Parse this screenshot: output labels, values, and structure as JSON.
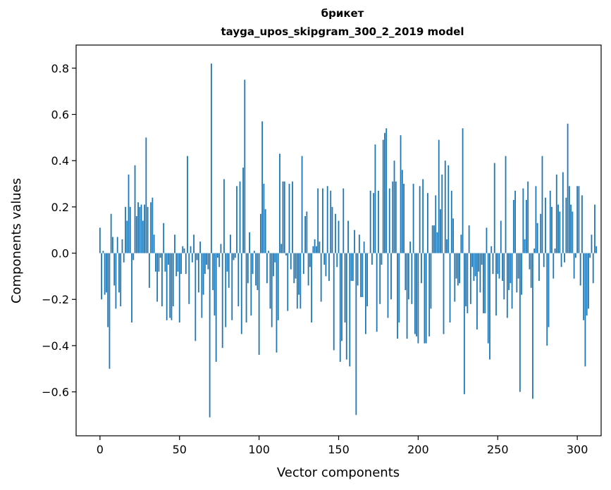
{
  "chart_data": {
    "type": "bar",
    "title": "брикет",
    "subtitle": "tayga_upos_skipgram_300_2_2019 model",
    "xlabel": "Vector components",
    "ylabel": "Components values",
    "xlim": [
      -15,
      315
    ],
    "ylim": [
      -0.79,
      0.9
    ],
    "xticks": [
      0,
      50,
      100,
      150,
      200,
      250,
      300
    ],
    "xtick_labels": [
      "0",
      "50",
      "100",
      "150",
      "200",
      "250",
      "300"
    ],
    "yticks": [
      -0.6,
      -0.4,
      -0.2,
      0.0,
      0.2,
      0.4,
      0.6,
      0.8
    ],
    "ytick_labels": [
      "−0.6",
      "−0.4",
      "−0.2",
      "0.0",
      "0.2",
      "0.4",
      "0.6",
      "0.8"
    ],
    "bar_color": "#1f77b4",
    "values": [
      0.11,
      -0.2,
      0.01,
      -0.18,
      -0.17,
      -0.32,
      -0.5,
      0.17,
      0.07,
      -0.14,
      -0.24,
      0.07,
      -0.17,
      -0.23,
      0.06,
      -0.04,
      0.2,
      0.14,
      0.34,
      0.2,
      -0.3,
      -0.03,
      0.38,
      0.16,
      0.22,
      0.2,
      0.21,
      0.14,
      0.21,
      0.5,
      0.2,
      -0.15,
      0.22,
      0.24,
      0.08,
      -0.08,
      -0.21,
      -0.08,
      -0.02,
      -0.23,
      0.13,
      -0.08,
      -0.29,
      -0.05,
      -0.28,
      -0.29,
      -0.23,
      0.08,
      -0.1,
      -0.08,
      -0.3,
      -0.09,
      0.03,
      0.02,
      -0.09,
      0.42,
      -0.22,
      0.03,
      -0.04,
      0.08,
      -0.38,
      -0.03,
      -0.17,
      0.05,
      -0.28,
      -0.18,
      -0.09,
      -0.05,
      -0.07,
      -0.71,
      0.82,
      -0.16,
      -0.27,
      -0.47,
      -0.02,
      -0.06,
      0.04,
      -0.41,
      0.32,
      -0.32,
      -0.08,
      -0.15,
      0.08,
      -0.29,
      -0.03,
      -0.02,
      0.29,
      -0.23,
      0.31,
      -0.35,
      0.37,
      0.75,
      -0.3,
      -0.13,
      0.09,
      -0.27,
      -0.09,
      0.01,
      -0.14,
      -0.16,
      -0.44,
      0.17,
      0.57,
      0.3,
      0.19,
      -0.13,
      0.01,
      -0.24,
      -0.32,
      -0.1,
      -0.04,
      -0.43,
      -0.29,
      0.43,
      0.04,
      0.31,
      0.31,
      -0.01,
      -0.25,
      0.3,
      -0.07,
      0.31,
      -0.13,
      -0.11,
      -0.24,
      -0.18,
      -0.24,
      0.42,
      -0.09,
      0.16,
      0.18,
      -0.14,
      -0.06,
      -0.3,
      0.03,
      0.06,
      0.03,
      0.28,
      0.05,
      -0.21,
      0.28,
      -0.05,
      -0.1,
      0.29,
      -0.12,
      0.27,
      0.2,
      -0.42,
      0.17,
      -0.06,
      0.14,
      -0.47,
      -0.38,
      0.28,
      -0.3,
      -0.46,
      0.14,
      -0.49,
      -0.12,
      -0.12,
      0.1,
      -0.7,
      -0.14,
      0.08,
      -0.19,
      -0.19,
      0.05,
      -0.35,
      -0.23,
      0.0,
      0.27,
      -0.05,
      0.26,
      0.47,
      -0.34,
      0.27,
      -0.22,
      -0.05,
      0.49,
      0.52,
      0.54,
      -0.28,
      0.28,
      -0.2,
      0.31,
      0.4,
      0.31,
      -0.37,
      -0.3,
      0.51,
      0.36,
      0.3,
      -0.16,
      -0.37,
      -0.2,
      0.05,
      -0.22,
      0.3,
      -0.35,
      -0.36,
      -0.39,
      0.29,
      -0.13,
      0.32,
      -0.39,
      -0.39,
      0.26,
      -0.36,
      -0.24,
      0.12,
      0.12,
      0.25,
      0.09,
      0.49,
      0.19,
      0.34,
      -0.35,
      0.4,
      0.06,
      0.38,
      -0.3,
      0.27,
      0.15,
      -0.21,
      -0.11,
      -0.14,
      -0.13,
      0.08,
      0.54,
      -0.61,
      -0.23,
      -0.26,
      0.12,
      -0.22,
      -0.06,
      -0.12,
      -0.1,
      -0.33,
      -0.08,
      -0.17,
      -0.05,
      -0.26,
      -0.26,
      0.11,
      -0.39,
      -0.46,
      0.03,
      -0.09,
      0.39,
      -0.27,
      -0.09,
      -0.11,
      0.14,
      -0.12,
      -0.2,
      0.42,
      -0.28,
      -0.16,
      -0.13,
      -0.24,
      0.23,
      0.27,
      -0.17,
      -0.11,
      -0.6,
      -0.18,
      0.28,
      0.06,
      0.23,
      0.31,
      -0.07,
      -0.15,
      -0.63,
      0.02,
      0.29,
      0.13,
      -0.12,
      0.17,
      0.42,
      -0.06,
      0.24,
      -0.4,
      -0.32,
      0.27,
      0.2,
      -0.11,
      0.02,
      0.34,
      0.21,
      0.18,
      -0.06,
      0.35,
      -0.04,
      0.24,
      0.56,
      0.29,
      0.21,
      0.18,
      -0.11,
      -0.02,
      0.29,
      0.29,
      -0.14,
      0.25,
      -0.29,
      -0.49,
      -0.27,
      -0.24,
      -0.02,
      0.08,
      -0.13,
      0.21,
      0.03
    ]
  }
}
